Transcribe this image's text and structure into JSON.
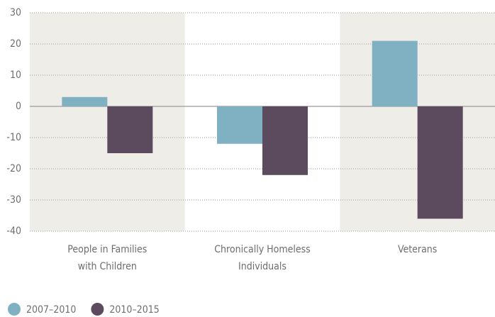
{
  "chart_data": {
    "type": "bar",
    "categories": [
      [
        "People in Families",
        "with Children"
      ],
      [
        "Chronically Homeless",
        "Individuals"
      ],
      [
        "Veterans"
      ]
    ],
    "series": [
      {
        "name": "2007–2010",
        "color": "#7fb1c3",
        "values": [
          3,
          -12,
          21
        ]
      },
      {
        "name": "2010–2015",
        "color": "#5c4a5f",
        "values": [
          -15,
          -22,
          -36
        ]
      }
    ],
    "ylim": [
      -40,
      30
    ],
    "yticks": [
      -40,
      -30,
      -20,
      -10,
      0,
      10,
      20,
      30
    ],
    "grid": true,
    "legend": "bottom-left"
  }
}
